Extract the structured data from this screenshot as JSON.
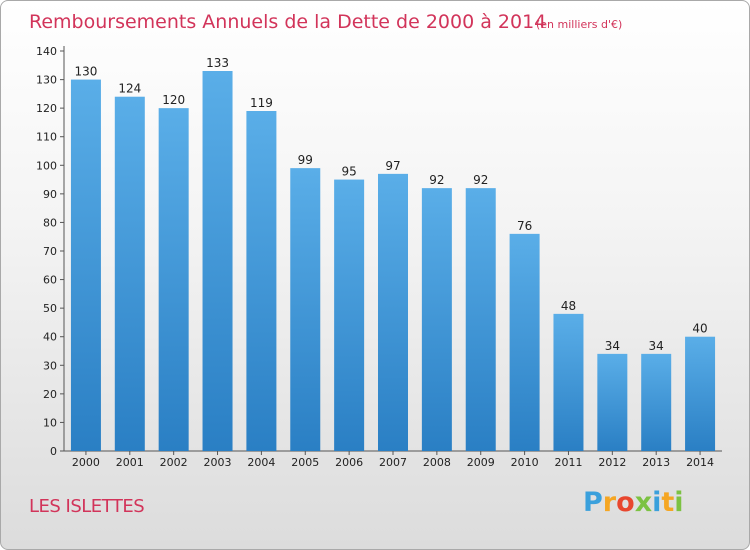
{
  "chart_data": {
    "type": "bar",
    "title": "Remboursements Annuels de la Dette de 2000 à 2014",
    "subtitle": "(en milliers d'€)",
    "categories": [
      "2000",
      "2001",
      "2002",
      "2003",
      "2004",
      "2005",
      "2006",
      "2007",
      "2008",
      "2009",
      "2010",
      "2011",
      "2012",
      "2013",
      "2014"
    ],
    "values": [
      130,
      124,
      120,
      133,
      119,
      99,
      95,
      97,
      92,
      92,
      76,
      48,
      34,
      34,
      40
    ],
    "yticks": [
      "0",
      "10",
      "20",
      "30",
      "40",
      "50",
      "60",
      "70",
      "80",
      "90",
      "100",
      "110",
      "120",
      "130",
      "140"
    ],
    "ylim": [
      0,
      140
    ],
    "xlabel": "",
    "ylabel": "",
    "grid": false,
    "bar_color_top": "#5aaee8",
    "bar_color_bottom": "#2a7fc4"
  },
  "town_name": "LES ISLETTES",
  "logo": {
    "letters": [
      "P",
      "r",
      "o",
      "x",
      "i",
      "t",
      "i"
    ],
    "colors": [
      "#3aa0dc",
      "#f5a623",
      "#e8462e",
      "#7cc242",
      "#3aa0dc",
      "#f5a623",
      "#7cc242"
    ]
  },
  "accent_color": "#d2345a"
}
